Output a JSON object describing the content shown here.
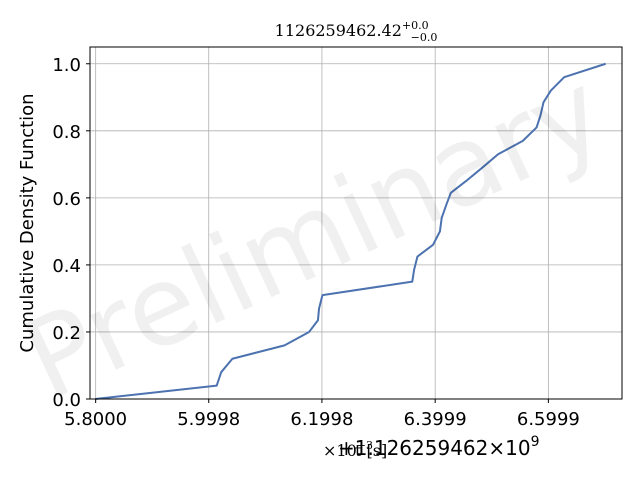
{
  "chart_data": {
    "type": "line",
    "title": "1126259462.42",
    "title_sup": "+0.0",
    "title_sub": "−0.0",
    "xlabel": "t [s]",
    "xlabel_prefix": "×10",
    "xlabel_exp": "−3",
    "x_offset_text": "+1.126259462",
    "x_offset_mult": "×10",
    "x_offset_exp": "9",
    "ylabel": "Cumulative Density Function",
    "watermark": "Preliminary",
    "xlim": [
      5.79,
      6.73
    ],
    "ylim": [
      0.0,
      1.05
    ],
    "grid": true,
    "x_ticks": [
      5.8,
      5.9998,
      6.1998,
      6.3999,
      6.5999
    ],
    "x_tick_labels": [
      "5.8000",
      "5.9998",
      "6.1998",
      "6.3999",
      "6.5999"
    ],
    "y_ticks": [
      0.0,
      0.2,
      0.4,
      0.6,
      0.8,
      1.0
    ],
    "y_tick_labels": [
      "0.0",
      "0.2",
      "0.4",
      "0.6",
      "0.8",
      "1.0"
    ],
    "series": [
      {
        "color": "#4c72b0",
        "x": [
          5.7992,
          6.0139,
          6.0218,
          6.0416,
          6.1337,
          6.1771,
          6.1928,
          6.1947,
          6.2007,
          6.3594,
          6.3626,
          6.3686,
          6.3961,
          6.4083,
          6.4114,
          6.4197,
          6.4276,
          6.4543,
          6.4831,
          6.511,
          6.5547,
          6.5791,
          6.5858,
          6.5913,
          6.6043,
          6.6278,
          6.7012
        ],
        "y": [
          0.0,
          0.04,
          0.08,
          0.12,
          0.16,
          0.2,
          0.235,
          0.27,
          0.31,
          0.35,
          0.385,
          0.425,
          0.46,
          0.5,
          0.54,
          0.58,
          0.615,
          0.65,
          0.69,
          0.73,
          0.77,
          0.81,
          0.845,
          0.885,
          0.92,
          0.96,
          1.0
        ]
      }
    ]
  }
}
